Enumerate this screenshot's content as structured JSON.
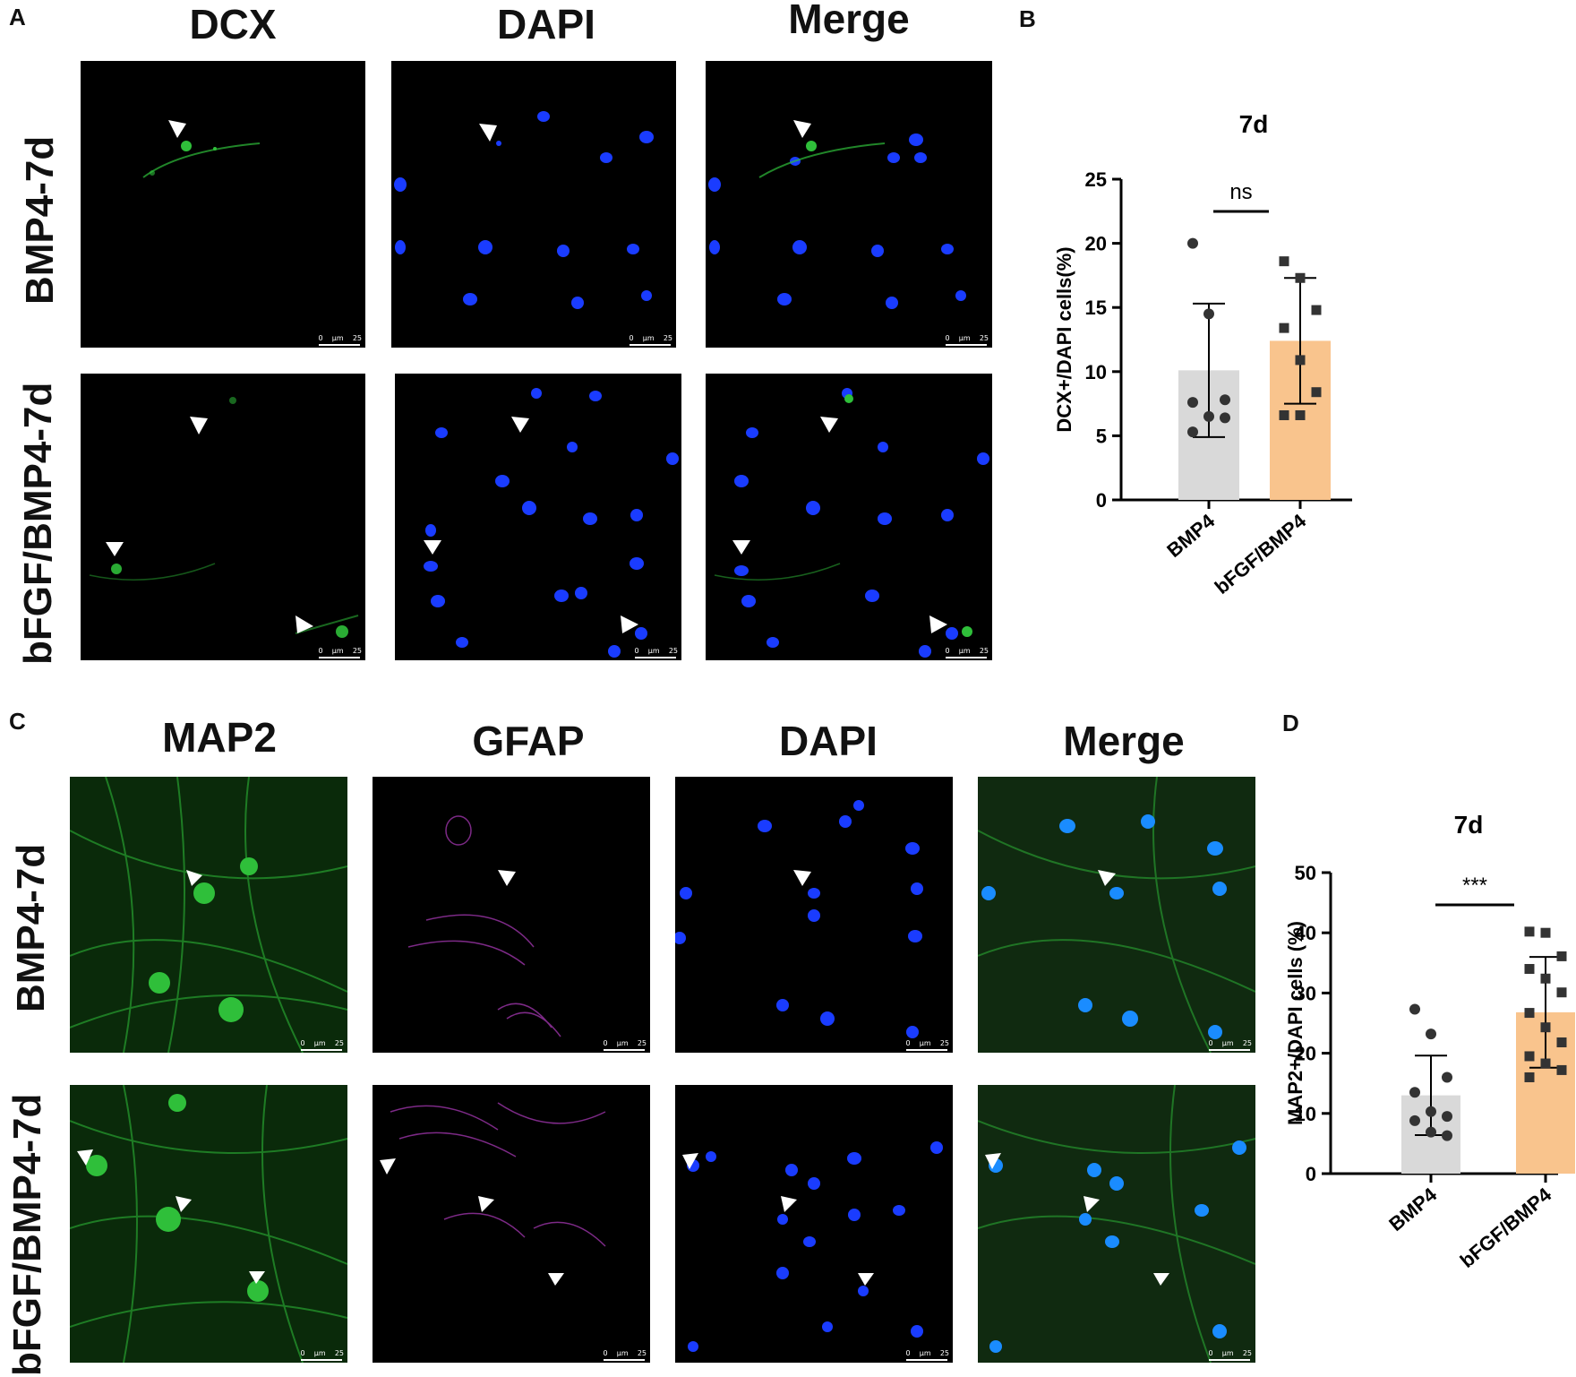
{
  "panels": {
    "A": "A",
    "B": "B",
    "C": "C",
    "D": "D"
  },
  "panel_a": {
    "columns": [
      "DCX",
      "DAPI",
      "Merge"
    ],
    "rows": [
      "BMP4-7d",
      "bFGF/BMP4-7d"
    ],
    "scale_bar": "0    µm    25"
  },
  "panel_c": {
    "columns": [
      "MAP2",
      "GFAP",
      "DAPI",
      "Merge"
    ],
    "rows": [
      "BMP4-7d",
      "bFGF/BMP4-7d"
    ],
    "scale_bar": "0    µm    25"
  },
  "colors": {
    "dcx_green": "#2fbf3a",
    "dapi_blue": "#1a3cff",
    "gfap_magenta": "#b23cc0",
    "bmp4_bar": "#d9d9d9",
    "bfgf_bar": "#f9c48d"
  },
  "chart_data": [
    {
      "type": "bar",
      "panel": "B",
      "title": "7d",
      "ylabel": "DCX+/DAPI cells(%)",
      "categories": [
        "BMP4",
        "bFGF/BMP4"
      ],
      "values": [
        10.1,
        12.4
      ],
      "sd": [
        5.2,
        4.9
      ],
      "points": [
        [
          20.0,
          14.5,
          7.8,
          7.6,
          6.5,
          6.4,
          5.3
        ],
        [
          18.6,
          17.3,
          14.8,
          13.4,
          10.9,
          8.4,
          6.6,
          6.6
        ]
      ],
      "markers": [
        "circle",
        "square"
      ],
      "ylim": [
        0,
        25
      ],
      "yticks": [
        0,
        5,
        10,
        15,
        20,
        25
      ],
      "significance": "ns"
    },
    {
      "type": "bar",
      "panel": "D",
      "title": "7d",
      "ylabel": "MAP2+/DAPI cells (%)",
      "categories": [
        "BMP4",
        "bFGF/BMP4"
      ],
      "values": [
        13.0,
        26.8
      ],
      "sd": [
        6.6,
        9.2
      ],
      "points": [
        [
          27.3,
          23.2,
          16.0,
          13.5,
          10.3,
          9.5,
          8.8,
          6.9,
          6.3
        ],
        [
          40.2,
          40.0,
          36.1,
          34.0,
          32.4,
          30.1,
          26.7,
          24.3,
          21.8,
          19.5,
          18.3,
          17.2,
          16.0
        ]
      ],
      "markers": [
        "circle",
        "square"
      ],
      "ylim": [
        0,
        50
      ],
      "yticks": [
        0,
        10,
        20,
        30,
        40,
        50
      ],
      "significance": "***"
    }
  ]
}
